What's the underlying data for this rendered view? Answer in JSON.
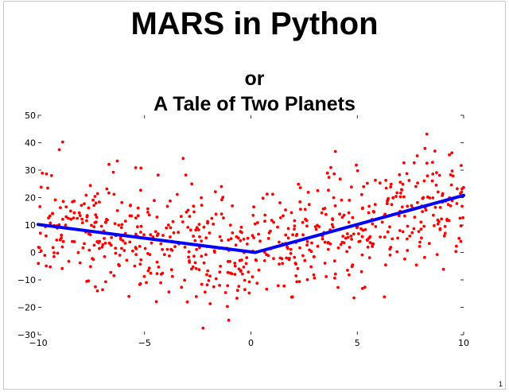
{
  "slide": {
    "title": "MARS in Python",
    "subtitle_line1": "or",
    "subtitle_line2": "A Tale of Two Planets",
    "page_number": "1"
  },
  "chart_data": {
    "type": "scatter",
    "xlim": [
      -10,
      10
    ],
    "ylim": [
      -30,
      50
    ],
    "x_ticks": [
      -10,
      -5,
      0,
      5,
      10
    ],
    "y_ticks": [
      -30,
      -20,
      -10,
      0,
      10,
      20,
      30,
      40,
      50
    ],
    "x_tick_labels": [
      "−10",
      "−5",
      "0",
      "5",
      "10"
    ],
    "y_tick_labels": [
      "−30",
      "−20",
      "−10",
      "0",
      "10",
      "20",
      "30",
      "40",
      "50"
    ],
    "grid": false,
    "series": [
      {
        "type": "scatter",
        "color": "#ff0000",
        "model": {
          "noise_sd": 10,
          "seed": 7,
          "n": 700
        }
      },
      {
        "type": "line",
        "color": "#0000ff",
        "x": [
          -10,
          0.2,
          10
        ],
        "y": [
          10.2,
          0,
          20.8
        ]
      }
    ]
  }
}
